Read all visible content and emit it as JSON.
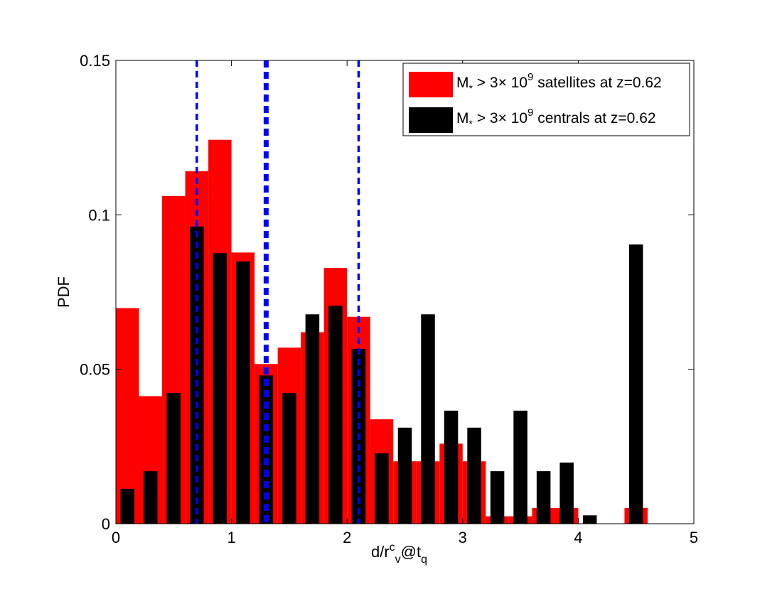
{
  "chart_data": {
    "type": "bar",
    "title": "",
    "xlabel": {
      "main": "d/r",
      "sub": "v",
      "sup": "c",
      "mid": "@t",
      "sub2": "q"
    },
    "ylabel": "PDF",
    "xlim": [
      0,
      5
    ],
    "ylim": [
      0,
      0.15
    ],
    "xticks": [
      0,
      1,
      2,
      3,
      4,
      5
    ],
    "xtick_labels": [
      "0",
      "1",
      "2",
      "3",
      "4",
      "5"
    ],
    "yticks": [
      0,
      0.05,
      0.1,
      0.15
    ],
    "ytick_labels": [
      "0",
      "0.05",
      "0.1",
      "0.15"
    ],
    "grid": false,
    "legend_position": "top-right",
    "series": [
      {
        "name": "M* > 3× 10^9 satellites at z=0.62",
        "legend": {
          "m": "M",
          "sub": "*",
          "mid": " > 3× 10",
          "sup": "9",
          "tail": " satellites at z=0.62"
        },
        "color": "#ff0000",
        "bin_width": 0.2,
        "x": [
          0.1,
          0.3,
          0.5,
          0.7,
          0.9,
          1.1,
          1.3,
          1.5,
          1.7,
          1.9,
          2.1,
          2.3,
          2.5,
          2.7,
          2.9,
          3.1,
          3.3,
          3.5,
          3.7,
          3.9,
          4.1,
          4.3,
          4.5
        ],
        "values": [
          0.0698,
          0.0413,
          0.1061,
          0.1141,
          0.1243,
          0.0878,
          0.0517,
          0.057,
          0.062,
          0.0828,
          0.067,
          0.0338,
          0.0202,
          0.0202,
          0.0259,
          0.0202,
          0.0024,
          0.0024,
          0.0051,
          0.0051,
          0.0,
          0.0,
          0.0051
        ]
      },
      {
        "name": "M* > 3× 10^9 centrals at z=0.62",
        "legend": {
          "m": "M",
          "sub": "*",
          "mid": " > 3× 10",
          "sup": "9",
          "tail": " centrals at z=0.62"
        },
        "color": "#000000",
        "bin_width": 0.12,
        "x": [
          0.1,
          0.3,
          0.5,
          0.7,
          0.9,
          1.1,
          1.3,
          1.5,
          1.7,
          1.9,
          2.1,
          2.3,
          2.5,
          2.7,
          2.9,
          3.1,
          3.3,
          3.5,
          3.7,
          3.9,
          4.1,
          4.3,
          4.5
        ],
        "values": [
          0.0113,
          0.017,
          0.0423,
          0.0962,
          0.0876,
          0.0849,
          0.048,
          0.0423,
          0.0678,
          0.0706,
          0.0566,
          0.0228,
          0.0311,
          0.0678,
          0.0366,
          0.0311,
          0.017,
          0.0366,
          0.017,
          0.0198,
          0.0027,
          0.0,
          0.0904
        ]
      }
    ],
    "vertical_lines": [
      {
        "x": 0.7,
        "color": "#0000ff",
        "style": "dashed",
        "weight": "normal"
      },
      {
        "x": 1.3,
        "color": "#0000ff",
        "style": "dashed",
        "weight": "bold"
      },
      {
        "x": 2.1,
        "color": "#0000ff",
        "style": "dashed",
        "weight": "normal"
      }
    ]
  }
}
